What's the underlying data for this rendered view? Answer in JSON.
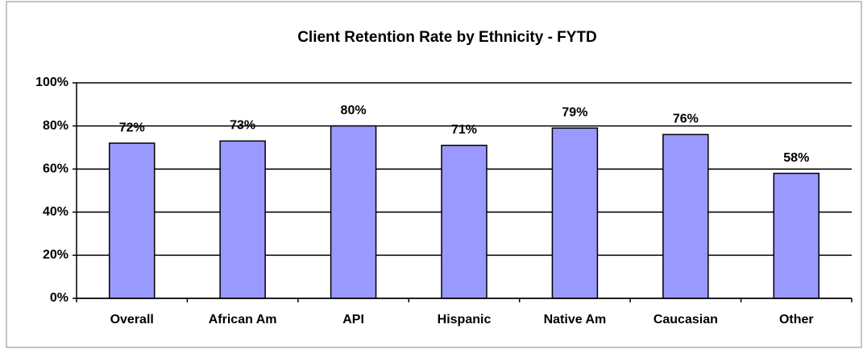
{
  "chart_data": {
    "type": "bar",
    "title": "Client Retention Rate by Ethnicity - FYTD",
    "categories": [
      "Overall",
      "African Am",
      "API",
      "Hispanic",
      "Native Am",
      "Caucasian",
      "Other"
    ],
    "values": [
      72,
      73,
      80,
      71,
      79,
      76,
      58
    ],
    "value_labels": [
      "72%",
      "73%",
      "80%",
      "71%",
      "79%",
      "76%",
      "58%"
    ],
    "color": "#9999ff",
    "ylim": [
      0,
      100
    ],
    "yticks": [
      {
        "value": 0,
        "label": "0%"
      },
      {
        "value": 20,
        "label": "20%"
      },
      {
        "value": 40,
        "label": "40%"
      },
      {
        "value": 60,
        "label": "60%"
      },
      {
        "value": 80,
        "label": "80%"
      },
      {
        "value": 100,
        "label": "100%"
      }
    ],
    "grid": true
  }
}
